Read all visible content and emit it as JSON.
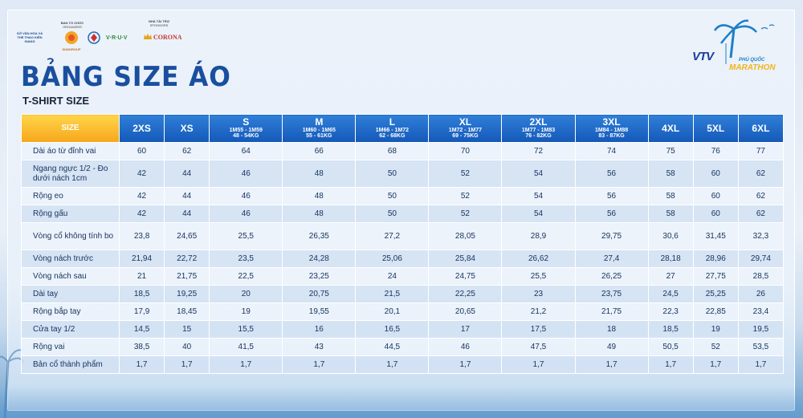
{
  "header": {
    "title": "BẢNG SIZE ÁO",
    "subtitle": "T-SHIRT SIZE"
  },
  "sponsors": {
    "organizer_label": "BAN TỔ CHỨC",
    "organizer_sub": "ORGANIZER",
    "sponsor_label": "NHÀ TÀI TRỢ",
    "sponsor_sub": "SPONSORS",
    "logos": [
      "SỞ VĂN HÓA VÀ THỂ THAO KIÊN GIANG",
      "SUNGROUP",
      "VIETNAM",
      "V·R·U·V",
      "CORONA"
    ]
  },
  "event": {
    "broadcaster": "VTV",
    "event_name_top": "PHÚ QUỐC",
    "event_name_bottom": "MARATHON"
  },
  "colors": {
    "header_blue": "#1458b8",
    "size_header_orange": "#f7a61b",
    "title_blue": "#1a4f9e"
  },
  "table": {
    "size_header": "SIZE",
    "columns": [
      {
        "size": "2XS",
        "height": "",
        "weight": ""
      },
      {
        "size": "XS",
        "height": "",
        "weight": ""
      },
      {
        "size": "S",
        "height": "1M55 - 1M59",
        "weight": "48 - 54KG"
      },
      {
        "size": "M",
        "height": "1M60 - 1M65",
        "weight": "55 - 61KG"
      },
      {
        "size": "L",
        "height": "1M66 - 1M72",
        "weight": "62 - 68KG"
      },
      {
        "size": "XL",
        "height": "1M72 - 1M77",
        "weight": "69 - 75KG"
      },
      {
        "size": "2XL",
        "height": "1M77 - 1M83",
        "weight": "76 - 82KG"
      },
      {
        "size": "3XL",
        "height": "1M84 - 1M88",
        "weight": "83 - 87KG"
      },
      {
        "size": "4XL",
        "height": "",
        "weight": ""
      },
      {
        "size": "5XL",
        "height": "",
        "weight": ""
      },
      {
        "size": "6XL",
        "height": "",
        "weight": ""
      }
    ],
    "rows": [
      {
        "label": "Dài áo từ đỉnh vai",
        "tall": false,
        "values": [
          "60",
          "62",
          "64",
          "66",
          "68",
          "70",
          "72",
          "74",
          "75",
          "76",
          "77"
        ]
      },
      {
        "label": "Ngang ngực 1/2 - Đo dưới nách 1cm",
        "tall": true,
        "values": [
          "42",
          "44",
          "46",
          "48",
          "50",
          "52",
          "54",
          "56",
          "58",
          "60",
          "62"
        ]
      },
      {
        "label": "Rộng eo",
        "tall": false,
        "values": [
          "42",
          "44",
          "46",
          "48",
          "50",
          "52",
          "54",
          "56",
          "58",
          "60",
          "62"
        ]
      },
      {
        "label": "Rộng gấu",
        "tall": false,
        "values": [
          "42",
          "44",
          "46",
          "48",
          "50",
          "52",
          "54",
          "56",
          "58",
          "60",
          "62"
        ]
      },
      {
        "label": "Vòng cổ không tính bo",
        "tall": true,
        "values": [
          "23,8",
          "24,65",
          "25,5",
          "26,35",
          "27,2",
          "28,05",
          "28,9",
          "29,75",
          "30,6",
          "31,45",
          "32,3"
        ]
      },
      {
        "label": "Vòng nách trước",
        "tall": false,
        "values": [
          "21,94",
          "22,72",
          "23,5",
          "24,28",
          "25,06",
          "25,84",
          "26,62",
          "27,4",
          "28,18",
          "28,96",
          "29,74"
        ]
      },
      {
        "label": "Vòng nách sau",
        "tall": false,
        "values": [
          "21",
          "21,75",
          "22,5",
          "23,25",
          "24",
          "24,75",
          "25,5",
          "26,25",
          "27",
          "27,75",
          "28,5"
        ]
      },
      {
        "label": "Dài tay",
        "tall": false,
        "values": [
          "18,5",
          "19,25",
          "20",
          "20,75",
          "21,5",
          "22,25",
          "23",
          "23,75",
          "24,5",
          "25,25",
          "26"
        ]
      },
      {
        "label": "Rộng bắp tay",
        "tall": false,
        "values": [
          "17,9",
          "18,45",
          "19",
          "19,55",
          "20,1",
          "20,65",
          "21,2",
          "21,75",
          "22,3",
          "22,85",
          "23,4"
        ]
      },
      {
        "label": "Cửa tay 1/2",
        "tall": false,
        "values": [
          "14,5",
          "15",
          "15,5",
          "16",
          "16,5",
          "17",
          "17,5",
          "18",
          "18,5",
          "19",
          "19,5"
        ]
      },
      {
        "label": "Rộng vai",
        "tall": false,
        "values": [
          "38,5",
          "40",
          "41,5",
          "43",
          "44,5",
          "46",
          "47,5",
          "49",
          "50,5",
          "52",
          "53,5"
        ]
      },
      {
        "label": "Bản cổ thành phẩm",
        "tall": false,
        "values": [
          "1,7",
          "1,7",
          "1,7",
          "1,7",
          "1,7",
          "1,7",
          "1,7",
          "1,7",
          "1,7",
          "1,7",
          "1,7"
        ]
      }
    ]
  }
}
